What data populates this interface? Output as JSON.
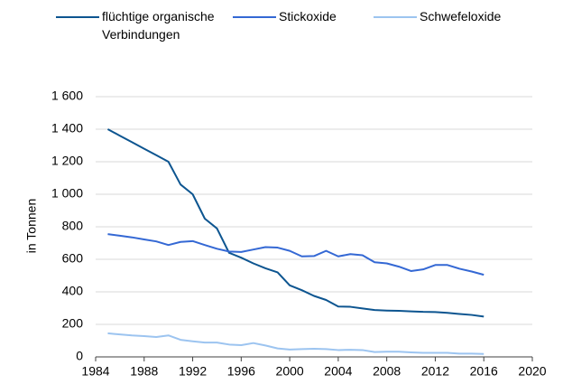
{
  "chart_data": {
    "type": "line",
    "y_label": "in Tonnen",
    "x": [
      1985,
      1986,
      1987,
      1988,
      1989,
      1990,
      1991,
      1992,
      1993,
      1994,
      1995,
      1996,
      1997,
      1998,
      1999,
      2000,
      2001,
      2002,
      2003,
      2004,
      2005,
      2006,
      2007,
      2008,
      2009,
      2010,
      2011,
      2012,
      2013,
      2014,
      2015,
      2016
    ],
    "series": [
      {
        "name": "flüchtige organische Verbindungen",
        "color": "#0d5590",
        "values": [
          1400,
          1360,
          1320,
          1280,
          1240,
          1200,
          1060,
          1000,
          850,
          790,
          640,
          610,
          575,
          545,
          520,
          440,
          410,
          375,
          350,
          310,
          308,
          298,
          288,
          285,
          283,
          280,
          277,
          276,
          271,
          264,
          258,
          248
        ]
      },
      {
        "name": "Stickoxide",
        "color": "#3468d4",
        "values": [
          755,
          745,
          735,
          722,
          710,
          688,
          707,
          712,
          688,
          665,
          648,
          645,
          660,
          675,
          672,
          652,
          618,
          620,
          652,
          618,
          632,
          625,
          582,
          575,
          555,
          528,
          538,
          565,
          565,
          542,
          525,
          505
        ]
      },
      {
        "name": "Schwefeloxide",
        "color": "#9cc4f0",
        "values": [
          145,
          138,
          132,
          128,
          122,
          132,
          105,
          96,
          88,
          88,
          76,
          72,
          85,
          70,
          52,
          45,
          48,
          50,
          48,
          42,
          44,
          42,
          30,
          32,
          32,
          28,
          25,
          25,
          25,
          20,
          20,
          18
        ]
      }
    ],
    "xlim": [
      1984,
      2020
    ],
    "xticks": [
      1984,
      1988,
      1992,
      1996,
      2000,
      2004,
      2008,
      2012,
      2016,
      2020
    ],
    "ylim": [
      0,
      1600
    ],
    "yticks": [
      0,
      200,
      400,
      600,
      800,
      {
        "value": 1000,
        "label": "1 000"
      },
      {
        "value": 1200,
        "label": "1 200"
      },
      {
        "value": 1400,
        "label": "1 400"
      },
      {
        "value": 1600,
        "label": "1 600"
      }
    ],
    "grid": true,
    "legend": "top"
  }
}
